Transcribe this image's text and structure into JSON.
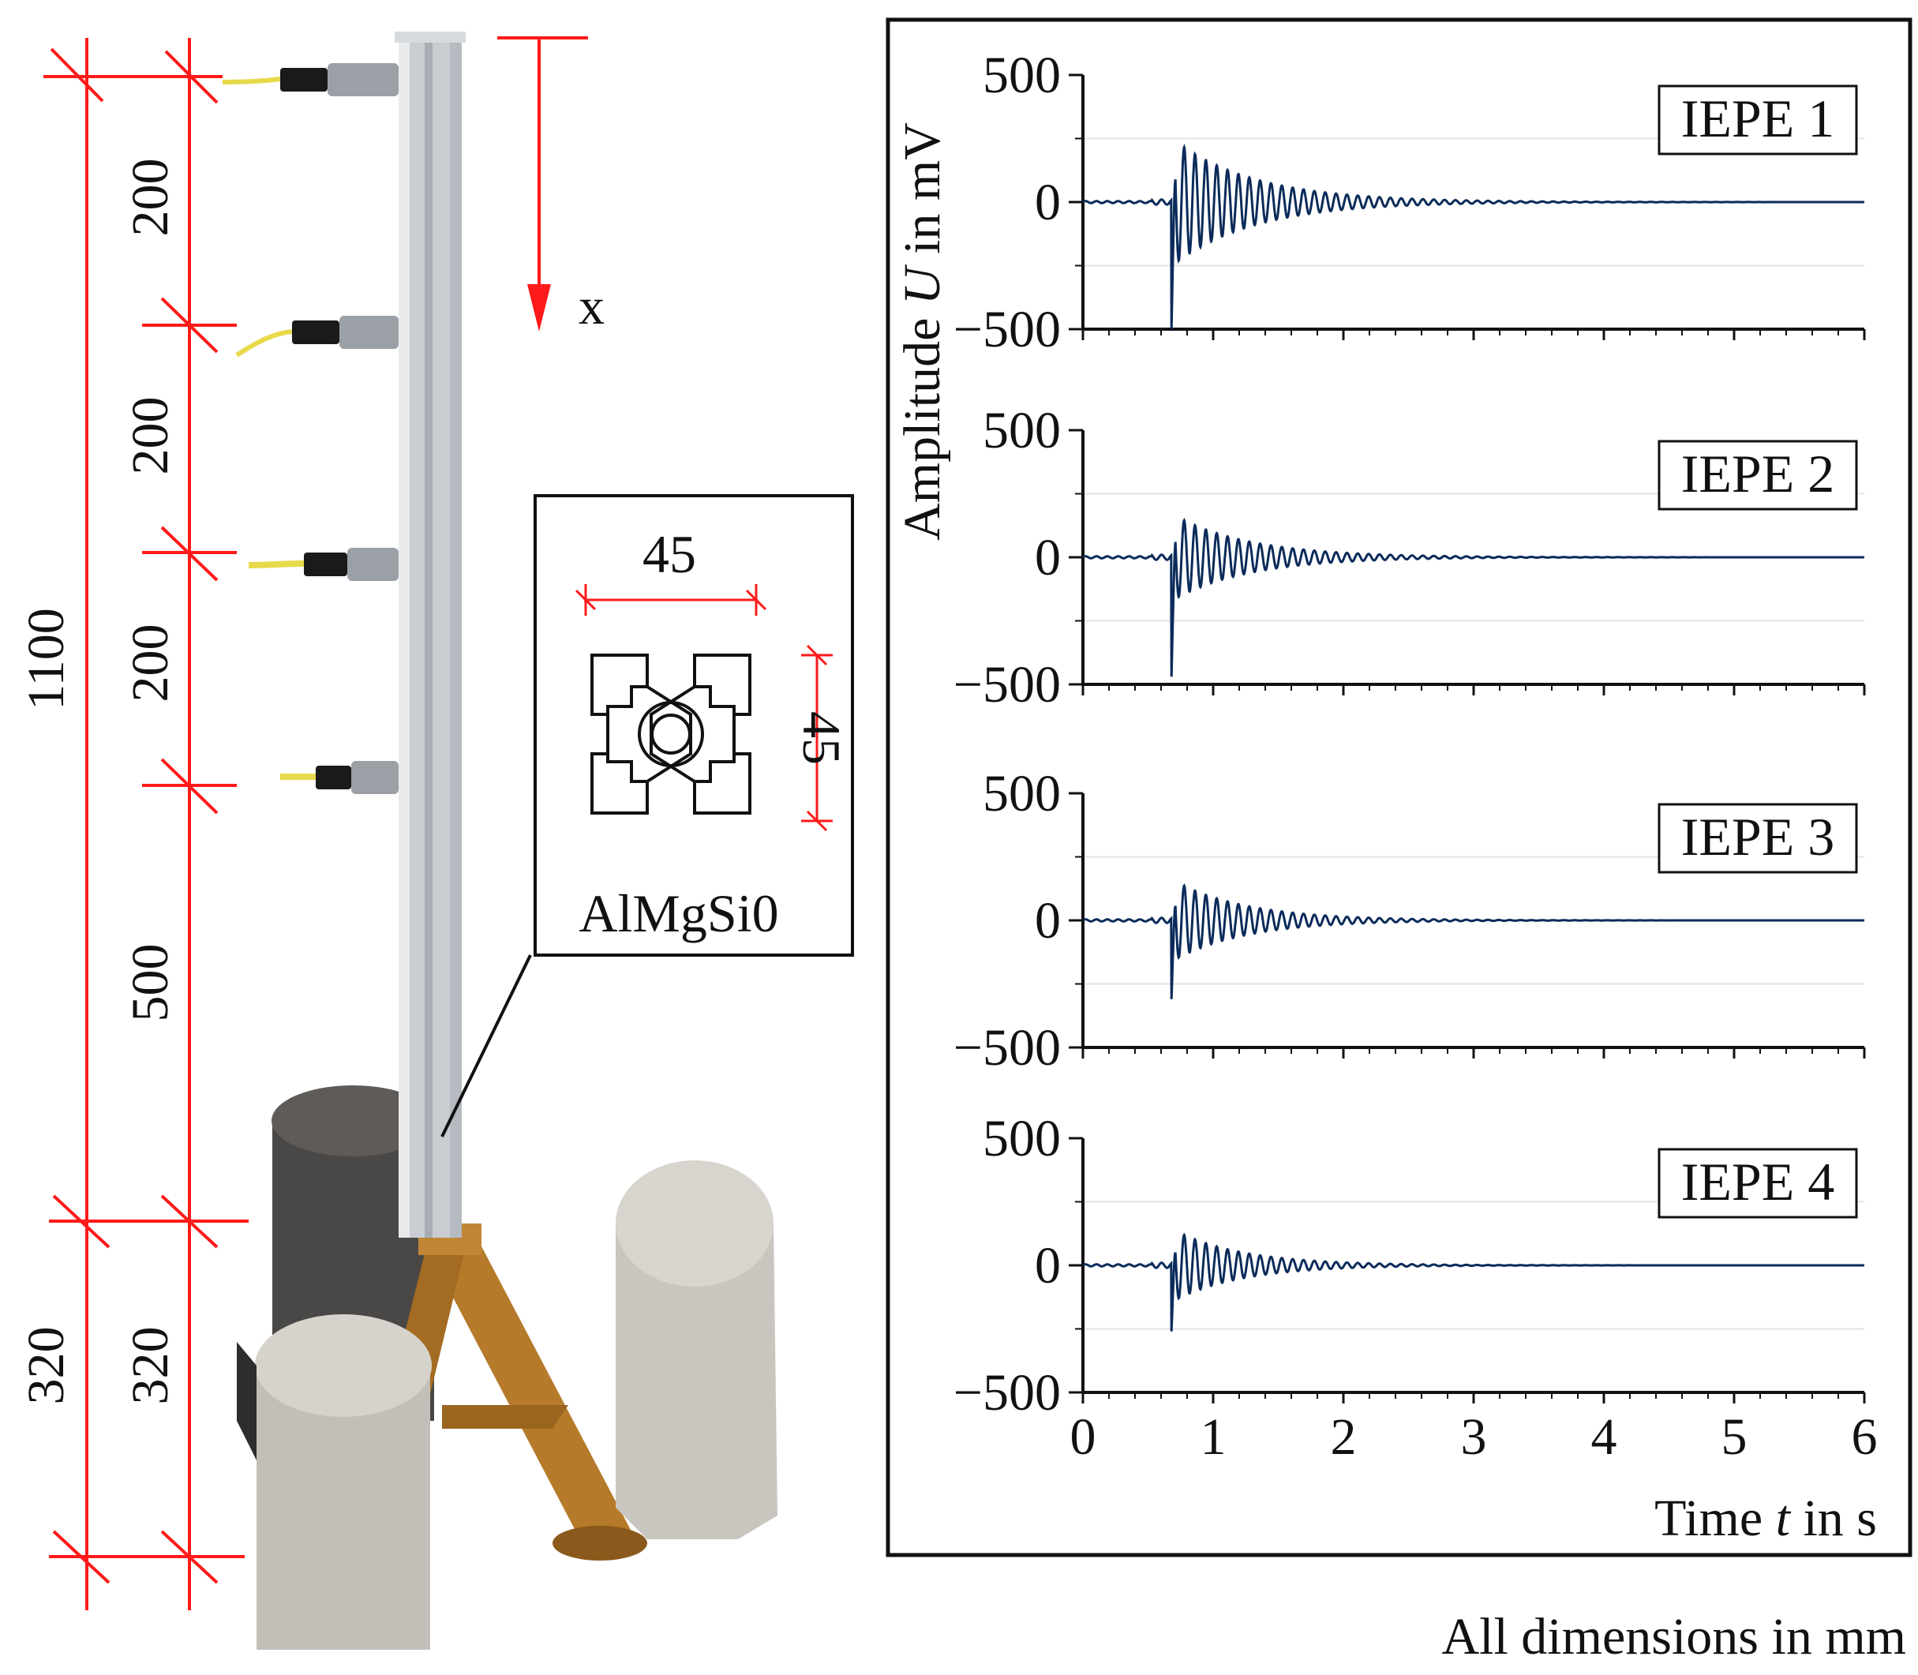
{
  "colors": {
    "dimension": "#ff1a1a",
    "signal": "#0b2b5a",
    "frame": "#111111",
    "gridline": "#e3e3e3",
    "beam": "#c9cdd2",
    "concrete_dark": "#4a4846",
    "concrete_light": "#c9c6c0",
    "tripod": "#b57a2a",
    "cable": "#e8d94a"
  },
  "photo": {
    "direction_label": "x",
    "dimensions_outer": {
      "total": "1100",
      "bottom": "320"
    },
    "dimensions_inner": {
      "segments": [
        "200",
        "200",
        "200",
        "500",
        "320"
      ]
    },
    "sensor_count": 4
  },
  "inset": {
    "width_label": "45",
    "height_label": "45",
    "material_label": "AlMgSi0"
  },
  "chart_data": {
    "type": "line",
    "xlabel_prefix": "Time ",
    "xlabel_var": "t",
    "xlabel_suffix": " in s",
    "ylabel_prefix": "Amplitude ",
    "ylabel_var": "U",
    "ylabel_suffix": " in mV",
    "xlim": [
      0,
      6
    ],
    "ylim": [
      -500,
      500
    ],
    "xticks": [
      "0",
      "1",
      "2",
      "3",
      "4",
      "5",
      "6"
    ],
    "yticks": [
      "500",
      "0",
      "−500"
    ],
    "grid": true,
    "panels": [
      {
        "name": "IEPE 1",
        "onset_s": 0.68,
        "peak_pos_mV": 280,
        "peak_neg_mV": -500,
        "decay_per_s": 1.6,
        "freq_hz": 12
      },
      {
        "name": "IEPE 2",
        "onset_s": 0.68,
        "peak_pos_mV": 190,
        "peak_neg_mV": -470,
        "decay_per_s": 1.7,
        "freq_hz": 12
      },
      {
        "name": "IEPE 3",
        "onset_s": 0.68,
        "peak_pos_mV": 180,
        "peak_neg_mV": -310,
        "decay_per_s": 1.8,
        "freq_hz": 12
      },
      {
        "name": "IEPE 4",
        "onset_s": 0.68,
        "peak_pos_mV": 160,
        "peak_neg_mV": -260,
        "decay_per_s": 1.9,
        "freq_hz": 12
      }
    ]
  },
  "footnote": "All dimensions in mm"
}
